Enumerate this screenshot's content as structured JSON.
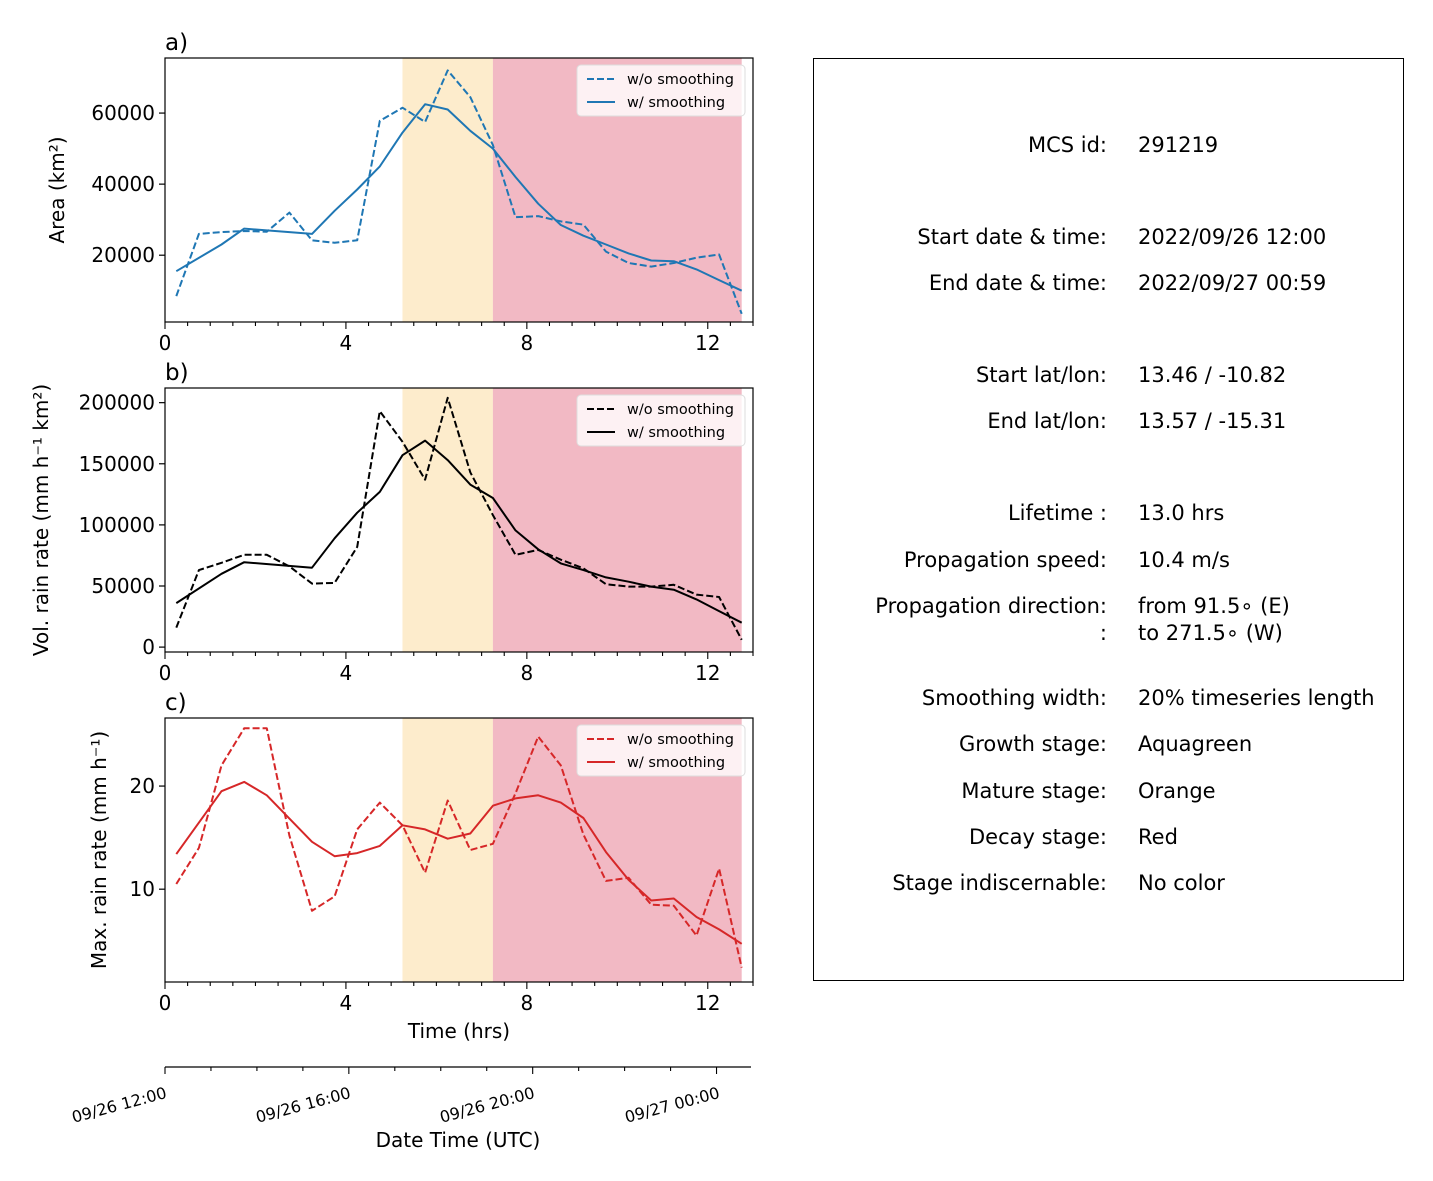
{
  "panels": [
    {
      "id": "area",
      "panel_label": "a)",
      "ylabel": "Area  (km²)",
      "color": "#1f77b4",
      "yticks": [
        20000,
        40000,
        60000
      ],
      "legend": [
        "w/o smoothing",
        "w/ smoothing"
      ]
    },
    {
      "id": "volrain",
      "panel_label": "b)",
      "ylabel": "Vol. rain rate (mm h⁻¹ km²)",
      "color": "#000000",
      "yticks": [
        0,
        50000,
        100000,
        150000,
        200000
      ],
      "legend": [
        "w/o smoothing",
        "w/ smoothing"
      ]
    },
    {
      "id": "maxrain",
      "panel_label": "c)",
      "ylabel": "Max. rain rate  (mm h⁻¹)",
      "color": "#d62728",
      "yticks": [
        10,
        20
      ],
      "legend": [
        "w/o smoothing",
        "w/ smoothing"
      ]
    }
  ],
  "xaxis": {
    "label": "Time (hrs)",
    "ticks": [
      0,
      4,
      8,
      12
    ]
  },
  "date_axis": {
    "label": "Date Time (UTC)",
    "ticks": [
      "09/26 12:00",
      "09/26 16:00",
      "09/26 20:00",
      "09/27 00:00"
    ]
  },
  "stage_colors": {
    "mature": "#fdeccc",
    "decay": "#f2b9c4"
  },
  "chart_data": [
    {
      "type": "line",
      "title": "a)",
      "ylabel": "Area  (km²)",
      "xlabel": "Time (hrs)",
      "xlim": [
        0,
        13
      ],
      "ylim": [
        1200,
        75500
      ],
      "stages": [
        {
          "name": "Mature stage",
          "color": "Orange",
          "x": [
            5.25,
            7.25
          ]
        },
        {
          "name": "Decay stage",
          "color": "Red",
          "x": [
            7.25,
            12.75
          ]
        }
      ],
      "x": [
        0.25,
        0.75,
        1.25,
        1.75,
        2.25,
        2.75,
        3.25,
        3.75,
        4.25,
        4.75,
        5.25,
        5.75,
        6.25,
        6.75,
        7.25,
        7.75,
        8.25,
        8.75,
        9.25,
        9.75,
        10.25,
        10.75,
        11.25,
        11.75,
        12.25,
        12.75
      ],
      "series": [
        {
          "name": "w/o smoothing",
          "style": "dashed",
          "values": [
            8500,
            26000,
            26500,
            26800,
            26600,
            32000,
            24200,
            23500,
            24200,
            57800,
            61500,
            57500,
            72000,
            64500,
            51000,
            30700,
            31000,
            29500,
            28600,
            21000,
            17800,
            16800,
            17800,
            19300,
            20200,
            3500
          ]
        },
        {
          "name": "w/ smoothing",
          "style": "solid",
          "values": [
            15500,
            null,
            23000,
            27500,
            null,
            null,
            26000,
            32500,
            38500,
            45000,
            54500,
            62500,
            61000,
            55000,
            50000,
            42000,
            34500,
            28500,
            25500,
            23000,
            20500,
            18500,
            18300,
            16000,
            13000,
            10000
          ]
        }
      ]
    },
    {
      "type": "line",
      "title": "b)",
      "ylabel": "Vol. rain rate (mm h⁻¹ km²)",
      "xlabel": "Time (hrs)",
      "xlim": [
        0,
        13
      ],
      "ylim": [
        -4000,
        212000
      ],
      "stages": [
        {
          "name": "Mature stage",
          "color": "Orange",
          "x": [
            5.25,
            7.25
          ]
        },
        {
          "name": "Decay stage",
          "color": "Red",
          "x": [
            7.25,
            12.75
          ]
        }
      ],
      "x": [
        0.25,
        0.75,
        1.25,
        1.75,
        2.25,
        2.75,
        3.25,
        3.75,
        4.25,
        4.75,
        5.25,
        5.75,
        6.25,
        6.75,
        7.25,
        7.75,
        8.25,
        8.75,
        9.25,
        9.75,
        10.25,
        10.75,
        11.25,
        11.75,
        12.25,
        12.75
      ],
      "series": [
        {
          "name": "w/o smoothing",
          "style": "dashed",
          "values": [
            16000,
            63000,
            69000,
            75500,
            75500,
            66000,
            52000,
            52500,
            82000,
            193000,
            168000,
            137000,
            204000,
            143000,
            108000,
            75500,
            79500,
            71500,
            64500,
            51500,
            49500,
            49500,
            51000,
            43000,
            41000,
            6000
          ]
        },
        {
          "name": "w/ smoothing",
          "style": "solid",
          "values": [
            36000,
            null,
            60000,
            69500,
            null,
            null,
            65000,
            89000,
            110000,
            127000,
            157000,
            169000,
            153000,
            133000,
            122000,
            95500,
            80000,
            68500,
            63000,
            57000,
            53500,
            49500,
            47000,
            39000,
            29500,
            20000
          ]
        }
      ]
    },
    {
      "type": "line",
      "title": "c)",
      "ylabel": "Max. rain rate  (mm h⁻¹)",
      "xlabel": "Time (hrs)",
      "xlim": [
        0,
        13
      ],
      "ylim": [
        1,
        26.6
      ],
      "stages": [
        {
          "name": "Mature stage",
          "color": "Orange",
          "x": [
            5.25,
            7.25
          ]
        },
        {
          "name": "Decay stage",
          "color": "Red",
          "x": [
            7.25,
            12.75
          ]
        }
      ],
      "x": [
        0.25,
        0.75,
        1.25,
        1.75,
        2.25,
        2.75,
        3.25,
        3.75,
        4.25,
        4.75,
        5.25,
        5.75,
        6.25,
        6.75,
        7.25,
        7.75,
        8.25,
        8.75,
        9.25,
        9.75,
        10.25,
        10.75,
        11.25,
        11.75,
        12.25,
        12.75
      ],
      "series": [
        {
          "name": "w/o smoothing",
          "style": "dashed",
          "values": [
            10.5,
            14.0,
            22.0,
            25.6,
            25.6,
            15.2,
            7.9,
            9.3,
            15.8,
            18.4,
            16.2,
            11.6,
            18.6,
            13.8,
            14.4,
            19.3,
            24.8,
            22.0,
            15.3,
            10.8,
            11.1,
            8.5,
            8.4,
            5.5,
            12.0,
            2.4
          ]
        },
        {
          "name": "w/ smoothing",
          "style": "solid",
          "values": [
            13.4,
            null,
            19.5,
            20.4,
            19.1,
            null,
            14.6,
            13.2,
            13.5,
            14.2,
            16.2,
            15.8,
            14.9,
            15.4,
            18.1,
            18.8,
            19.1,
            18.4,
            16.9,
            13.6,
            10.9,
            8.9,
            9.1,
            7.3,
            6.1,
            4.7
          ]
        }
      ]
    }
  ],
  "info": {
    "rows": [
      {
        "label": "MCS id:",
        "value": "291219"
      },
      {
        "label": "Start date & time:",
        "value": "2022/09/26 12:00"
      },
      {
        "label": "End date & time:",
        "value": "2022/09/27 00:59"
      },
      {
        "label": "Start lat/lon:",
        "value": "13.46 / -10.82"
      },
      {
        "label": "End lat/lon:",
        "value": "13.57 / -15.31"
      },
      {
        "label": "Lifetime :",
        "value": "13.0 hrs"
      },
      {
        "label": "Propagation speed:",
        "value": "10.4 m/s"
      },
      {
        "label": "Propagation direction:",
        "value": "from  91.5∘ (E)"
      },
      {
        "label": ":",
        "value": "to   271.5∘ (W)"
      },
      {
        "label": "Smoothing width:",
        "value": "20% timeseries length"
      },
      {
        "label": "Growth stage:",
        "value": "Aquagreen"
      },
      {
        "label": "Mature stage:",
        "value": "Orange"
      },
      {
        "label": "Decay stage:",
        "value": "Red"
      },
      {
        "label": "Stage indiscernable:",
        "value": "No color"
      }
    ]
  }
}
